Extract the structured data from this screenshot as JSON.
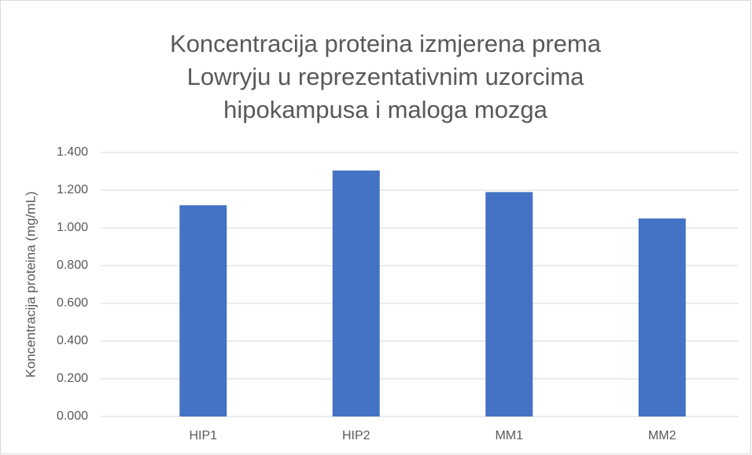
{
  "chart_data": {
    "type": "bar",
    "title": [
      "Koncentracija proteina izmjerena prema",
      "Lowryju u reprezentativnim uzorcima",
      "hipokampusa i maloga mozga"
    ],
    "y_label": "Koncentracija proteina (mg/mL)",
    "categories": [
      "HIP1",
      "HIP2",
      "MM1",
      "MM2"
    ],
    "values": [
      1.12,
      1.304,
      1.19,
      1.05
    ],
    "color": "#4472c4",
    "ylim": [
      0,
      1.4
    ],
    "yticks": [
      {
        "value": 0,
        "label": "0.000"
      },
      {
        "value": 0.2,
        "label": "0.200"
      },
      {
        "value": 0.4,
        "label": "0.400"
      },
      {
        "value": 0.6,
        "label": "0.600"
      },
      {
        "value": 0.8,
        "label": "0.800"
      },
      {
        "value": 1.0,
        "label": "1.000"
      },
      {
        "value": 1.2,
        "label": "1.200"
      },
      {
        "value": 1.4,
        "label": "1.400"
      }
    ],
    "grid": true
  }
}
